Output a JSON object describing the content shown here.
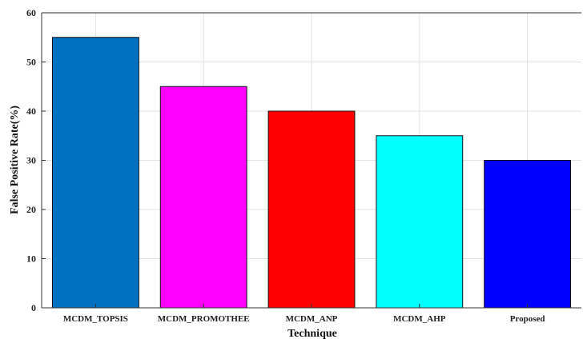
{
  "chart_data": {
    "type": "bar",
    "title": "",
    "xlabel": "Technique",
    "ylabel": "False Positive Rate(%)",
    "ylim": [
      0,
      60
    ],
    "yticks": [
      0,
      10,
      20,
      30,
      40,
      50,
      60
    ],
    "grid": true,
    "categories": [
      "MCDM_TOPSIS",
      "MCDM_PROMOTHEE",
      "MCDM_ANP",
      "MCDM_AHP",
      "Proposed"
    ],
    "values": [
      55,
      45,
      40,
      35,
      30
    ],
    "colors": [
      "#0070C0",
      "#FF00FF",
      "#FF0000",
      "#00FFFF",
      "#0000FF"
    ]
  }
}
